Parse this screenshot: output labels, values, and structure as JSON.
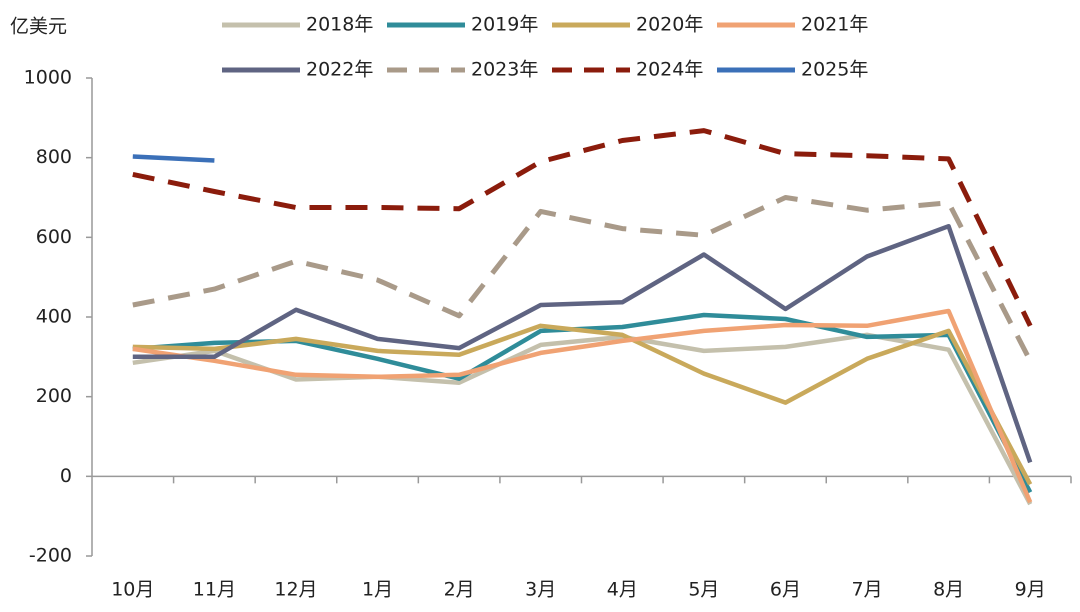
{
  "chart_data": {
    "type": "line",
    "y_label": "亿美元",
    "categories": [
      "10月",
      "11月",
      "12月",
      "1月",
      "2月",
      "3月",
      "4月",
      "5月",
      "6月",
      "7月",
      "8月",
      "9月"
    ],
    "ylim": [
      -200,
      1000
    ],
    "yticks": [
      -200,
      0,
      200,
      400,
      600,
      800,
      1000
    ],
    "series": [
      {
        "name": "2018年",
        "color": "#c4c0ac",
        "style": "solid",
        "values": [
          285,
          315,
          243,
          250,
          235,
          330,
          350,
          315,
          325,
          355,
          318,
          -70
        ]
      },
      {
        "name": "2019年",
        "color": "#2f8c99",
        "style": "solid",
        "values": [
          320,
          335,
          340,
          295,
          245,
          365,
          375,
          405,
          395,
          350,
          355,
          -40
        ]
      },
      {
        "name": "2020年",
        "color": "#c9a95b",
        "style": "solid",
        "values": [
          325,
          320,
          345,
          315,
          305,
          378,
          355,
          258,
          185,
          295,
          365,
          -20
        ]
      },
      {
        "name": "2021年",
        "color": "#f0a273",
        "style": "solid",
        "values": [
          320,
          290,
          255,
          250,
          255,
          310,
          340,
          365,
          380,
          378,
          415,
          -65
        ]
      },
      {
        "name": "2022年",
        "color": "#5f6482",
        "style": "solid",
        "values": [
          300,
          300,
          418,
          345,
          322,
          430,
          437,
          557,
          420,
          552,
          628,
          35
        ]
      },
      {
        "name": "2023年",
        "color": "#a99a89",
        "style": "dashed",
        "values": [
          430,
          470,
          540,
          493,
          403,
          665,
          622,
          605,
          700,
          668,
          687,
          290
        ]
      },
      {
        "name": "2024年",
        "color": "#8b1c0c",
        "style": "dashed",
        "values": [
          758,
          715,
          675,
          675,
          672,
          790,
          843,
          868,
          810,
          805,
          797,
          378
        ]
      },
      {
        "name": "2025年",
        "color": "#3b70b8",
        "style": "solid",
        "values": [
          803,
          793,
          null,
          null,
          null,
          null,
          null,
          null,
          null,
          null,
          null,
          null
        ]
      }
    ]
  }
}
